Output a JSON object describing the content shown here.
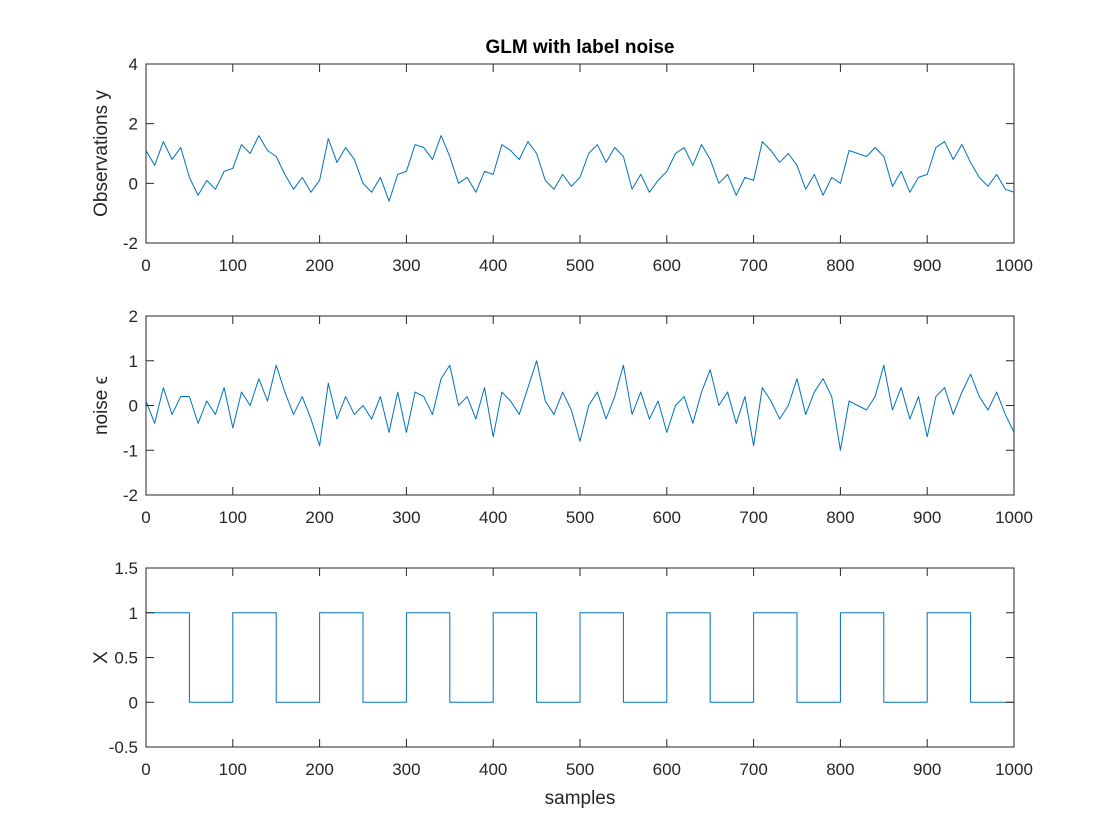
{
  "chart_data": [
    {
      "type": "line",
      "title": "GLM with label noise",
      "xlabel": "",
      "ylabel": "Observations y",
      "xlim": [
        0,
        1000
      ],
      "ylim": [
        -2,
        4
      ],
      "xticks": [
        "0",
        "100",
        "200",
        "300",
        "400",
        "500",
        "600",
        "700",
        "800",
        "900",
        "1000"
      ],
      "yticks": [
        "-2",
        "0",
        "2",
        "4"
      ],
      "grid": false,
      "color": "#0072BD",
      "series": [
        {
          "x": [
            0,
            10,
            20,
            30,
            40,
            50,
            60,
            70,
            80,
            90,
            100,
            110,
            120,
            130,
            140,
            150,
            160,
            170,
            180,
            190,
            200,
            210,
            220,
            230,
            240,
            250,
            260,
            270,
            280,
            290,
            300,
            310,
            320,
            330,
            340,
            350,
            360,
            370,
            380,
            390,
            400,
            410,
            420,
            430,
            440,
            450,
            460,
            470,
            480,
            490,
            500,
            510,
            520,
            530,
            540,
            550,
            560,
            570,
            580,
            590,
            600,
            610,
            620,
            630,
            640,
            650,
            660,
            670,
            680,
            690,
            700,
            710,
            720,
            730,
            740,
            750,
            760,
            770,
            780,
            790,
            800,
            810,
            820,
            830,
            840,
            850,
            860,
            870,
            880,
            890,
            900,
            910,
            920,
            930,
            940,
            950,
            960,
            970,
            980,
            990,
            1000
          ],
          "values": [
            1.1,
            0.6,
            1.4,
            0.8,
            1.2,
            0.2,
            -0.4,
            0.1,
            -0.2,
            0.4,
            0.5,
            1.3,
            1.0,
            1.6,
            1.1,
            0.9,
            0.3,
            -0.2,
            0.2,
            -0.3,
            0.1,
            1.5,
            0.7,
            1.2,
            0.8,
            0.0,
            -0.3,
            0.2,
            -0.6,
            0.3,
            0.4,
            1.3,
            1.2,
            0.8,
            1.6,
            0.9,
            0.0,
            0.2,
            -0.3,
            0.4,
            0.3,
            1.3,
            1.1,
            0.8,
            1.4,
            1.0,
            0.1,
            -0.2,
            0.3,
            -0.1,
            0.2,
            1.0,
            1.3,
            0.7,
            1.2,
            0.9,
            -0.2,
            0.3,
            -0.3,
            0.1,
            0.4,
            1.0,
            1.2,
            0.6,
            1.3,
            0.8,
            0.0,
            0.3,
            -0.4,
            0.2,
            0.1,
            1.4,
            1.1,
            0.7,
            1.0,
            0.6,
            -0.2,
            0.3,
            -0.4,
            0.2,
            0.0,
            1.1,
            1.0,
            0.9,
            1.2,
            0.9,
            -0.1,
            0.4,
            -0.3,
            0.2,
            0.3,
            1.2,
            1.4,
            0.8,
            1.3,
            0.7,
            0.2,
            -0.1,
            0.3,
            -0.2,
            -0.3
          ]
        }
      ]
    },
    {
      "type": "line",
      "title": "",
      "xlabel": "",
      "ylabel": "noise ϵ",
      "xlim": [
        0,
        1000
      ],
      "ylim": [
        -2,
        2
      ],
      "xticks": [
        "0",
        "100",
        "200",
        "300",
        "400",
        "500",
        "600",
        "700",
        "800",
        "900",
        "1000"
      ],
      "yticks": [
        "-2",
        "-1",
        "0",
        "1",
        "2"
      ],
      "grid": false,
      "color": "#0072BD",
      "series": [
        {
          "x": [
            0,
            10,
            20,
            30,
            40,
            50,
            60,
            70,
            80,
            90,
            100,
            110,
            120,
            130,
            140,
            150,
            160,
            170,
            180,
            190,
            200,
            210,
            220,
            230,
            240,
            250,
            260,
            270,
            280,
            290,
            300,
            310,
            320,
            330,
            340,
            350,
            360,
            370,
            380,
            390,
            400,
            410,
            420,
            430,
            440,
            450,
            460,
            470,
            480,
            490,
            500,
            510,
            520,
            530,
            540,
            550,
            560,
            570,
            580,
            590,
            600,
            610,
            620,
            630,
            640,
            650,
            660,
            670,
            680,
            690,
            700,
            710,
            720,
            730,
            740,
            750,
            760,
            770,
            780,
            790,
            800,
            810,
            820,
            830,
            840,
            850,
            860,
            870,
            880,
            890,
            900,
            910,
            920,
            930,
            940,
            950,
            960,
            970,
            980,
            990,
            1000
          ],
          "values": [
            0.1,
            -0.4,
            0.4,
            -0.2,
            0.2,
            0.2,
            -0.4,
            0.1,
            -0.2,
            0.4,
            -0.5,
            0.3,
            0.0,
            0.6,
            0.1,
            0.9,
            0.3,
            -0.2,
            0.2,
            -0.3,
            -0.9,
            0.5,
            -0.3,
            0.2,
            -0.2,
            0.0,
            -0.3,
            0.2,
            -0.6,
            0.3,
            -0.6,
            0.3,
            0.2,
            -0.2,
            0.6,
            0.9,
            0.0,
            0.2,
            -0.3,
            0.4,
            -0.7,
            0.3,
            0.1,
            -0.2,
            0.4,
            1.0,
            0.1,
            -0.2,
            0.3,
            -0.1,
            -0.8,
            0.0,
            0.3,
            -0.3,
            0.2,
            0.9,
            -0.2,
            0.3,
            -0.3,
            0.1,
            -0.6,
            0.0,
            0.2,
            -0.4,
            0.3,
            0.8,
            0.0,
            0.3,
            -0.4,
            0.2,
            -0.9,
            0.4,
            0.1,
            -0.3,
            0.0,
            0.6,
            -0.2,
            0.3,
            0.6,
            0.2,
            -1.0,
            0.1,
            0.0,
            -0.1,
            0.2,
            0.9,
            -0.1,
            0.4,
            -0.3,
            0.2,
            -0.7,
            0.2,
            0.4,
            -0.2,
            0.3,
            0.7,
            0.2,
            -0.1,
            0.3,
            -0.2,
            -0.6
          ]
        }
      ]
    },
    {
      "type": "line",
      "title": "",
      "xlabel": "samples",
      "ylabel": "X",
      "xlim": [
        0,
        1000
      ],
      "ylim": [
        -0.5,
        1.5
      ],
      "xticks": [
        "0",
        "100",
        "200",
        "300",
        "400",
        "500",
        "600",
        "700",
        "800",
        "900",
        "1000"
      ],
      "yticks": [
        "-0.5",
        "0",
        "0.5",
        "1",
        "1.5"
      ],
      "grid": false,
      "color": "#0072BD",
      "series": [
        {
          "x": [
            0,
            50,
            50,
            100,
            100,
            150,
            150,
            200,
            200,
            250,
            250,
            300,
            300,
            350,
            350,
            400,
            400,
            450,
            450,
            500,
            500,
            550,
            550,
            600,
            600,
            650,
            650,
            700,
            700,
            750,
            750,
            800,
            800,
            850,
            850,
            900,
            900,
            950,
            950,
            1000
          ],
          "values": [
            1,
            1,
            0,
            0,
            1,
            1,
            0,
            0,
            1,
            1,
            0,
            0,
            1,
            1,
            0,
            0,
            1,
            1,
            0,
            0,
            1,
            1,
            0,
            0,
            1,
            1,
            0,
            0,
            1,
            1,
            0,
            0,
            1,
            1,
            0,
            0,
            1,
            1,
            0,
            0
          ]
        }
      ]
    }
  ]
}
